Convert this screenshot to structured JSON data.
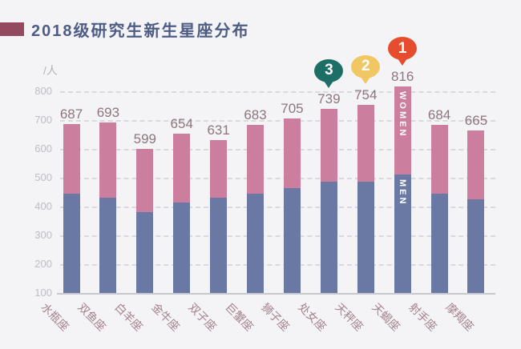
{
  "page": {
    "background": "#f4f4f7"
  },
  "header": {
    "title": "2018级研究生新生星座分布",
    "marker_color": "#93495f",
    "title_color": "#4d5c84"
  },
  "chart_data": {
    "type": "bar",
    "stacked": true,
    "title": "2018级研究生新生星座分布",
    "unit_label": "/人",
    "categories": [
      "水瓶座",
      "双鱼座",
      "白羊座",
      "金牛座",
      "双子座",
      "巨蟹座",
      "狮子座",
      "处女座",
      "天秤座",
      "天蝎座",
      "射手座",
      "摩羯座"
    ],
    "totals": [
      687,
      693,
      599,
      654,
      631,
      683,
      705,
      739,
      754,
      816,
      684,
      665
    ],
    "series": [
      {
        "name": "MEN",
        "color": "#6a79a3",
        "values": [
          445,
          430,
          380,
          415,
          430,
          445,
          465,
          485,
          485,
          510,
          445,
          425
        ]
      },
      {
        "name": "WOMEN",
        "color": "#cb7e9d",
        "values": [
          242,
          263,
          219,
          239,
          201,
          238,
          240,
          254,
          269,
          306,
          239,
          240
        ]
      }
    ],
    "y_ticks": [
      800,
      700,
      600,
      500,
      400,
      300,
      200,
      100
    ],
    "ylim": [
      100,
      800
    ],
    "grid": "horizontal-dashed",
    "legend": "none",
    "annotations": {
      "ranks": [
        {
          "category": "天蝎座",
          "rank": "1",
          "color": "#e64c2e"
        },
        {
          "category": "天秤座",
          "rank": "2",
          "color": "#f0c763"
        },
        {
          "category": "处女座",
          "rank": "3",
          "color": "#1d6e66"
        }
      ],
      "segment_labels": {
        "category": "天蝎座",
        "women": "WOMEN",
        "men": "MEN"
      }
    }
  },
  "colors": {
    "gridline": "#d9d9de",
    "axis_line": "#c7c7ce",
    "y_tick_label": "#bdbdc5",
    "x_tick_label": "#a3828a",
    "value_label": "#8d767c",
    "unit_label": "#b2b2bc"
  }
}
